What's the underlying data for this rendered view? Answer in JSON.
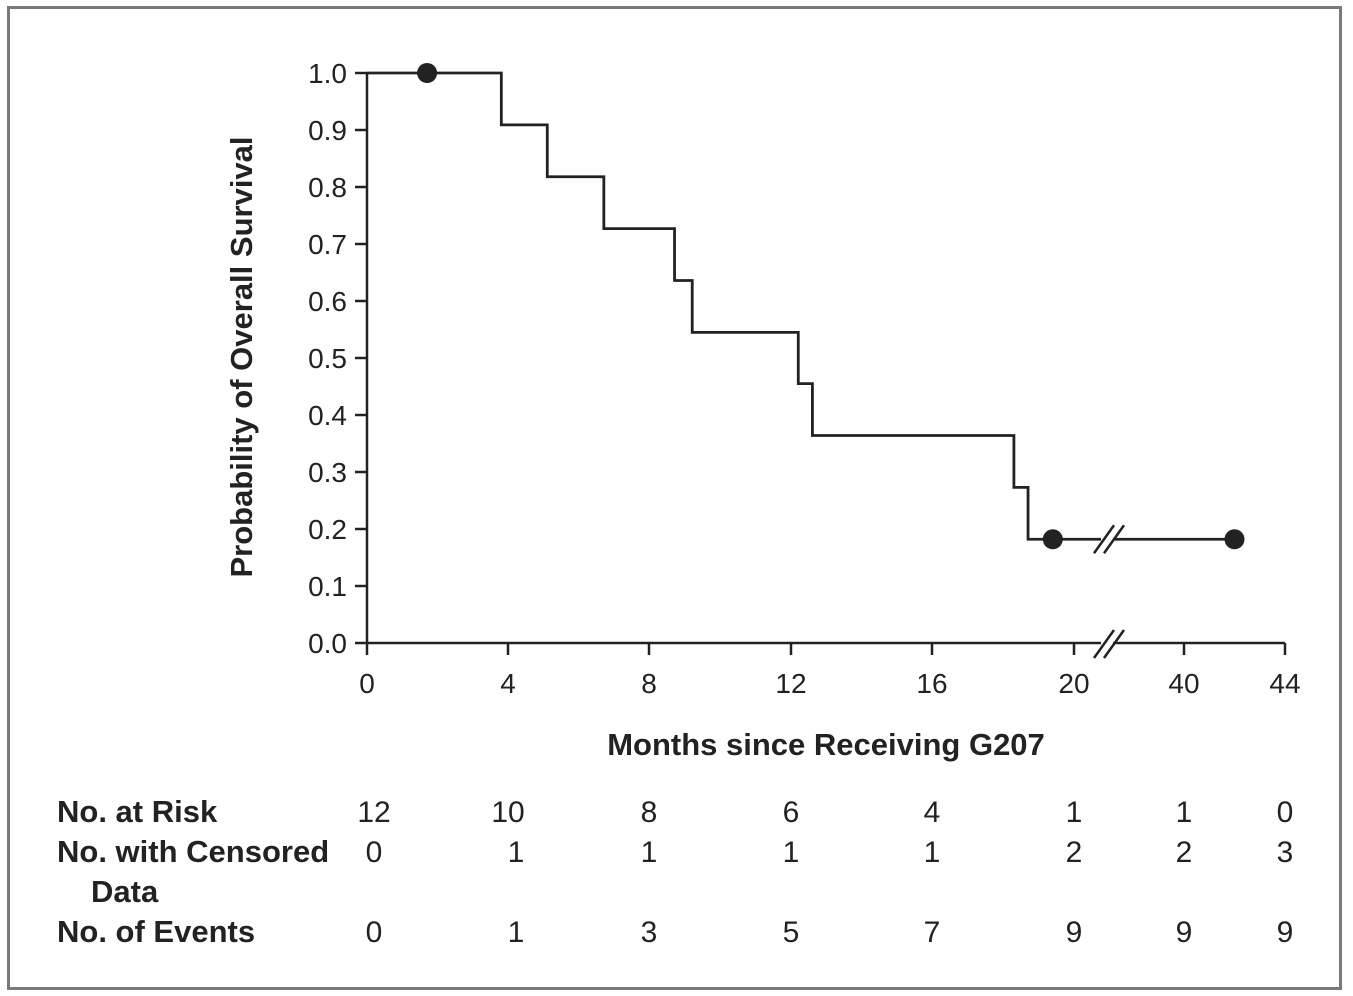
{
  "chart_data": {
    "type": "line",
    "subtype": "kaplan-meier step",
    "title": "",
    "xlabel": "Months since Receiving G207",
    "ylabel": "Probability of Overall Survival",
    "ylim": [
      0,
      1
    ],
    "x_axis_break": "between 20 and 40",
    "x_ticks": [
      "0",
      "4",
      "8",
      "12",
      "16",
      "20",
      "40",
      "44"
    ],
    "y_ticks": [
      "0.0",
      "0.1",
      "0.2",
      "0.3",
      "0.4",
      "0.5",
      "0.6",
      "0.7",
      "0.8",
      "0.9",
      "1.0"
    ],
    "series": [
      {
        "steps": [
          {
            "x": 0,
            "y": 1.0
          },
          {
            "x": 3.8,
            "y": 0.909
          },
          {
            "x": 5.1,
            "y": 0.818
          },
          {
            "x": 6.7,
            "y": 0.727
          },
          {
            "x": 8.7,
            "y": 0.636
          },
          {
            "x": 9.2,
            "y": 0.545
          },
          {
            "x": 12.2,
            "y": 0.455
          },
          {
            "x": 12.6,
            "y": 0.364
          },
          {
            "x": 18.3,
            "y": 0.273
          },
          {
            "x": 18.7,
            "y": 0.182
          }
        ],
        "end_x": 42.0,
        "censored": [
          {
            "x": 1.7,
            "y": 1.0
          },
          {
            "x": 19.4,
            "y": 0.182
          },
          {
            "x": 42.0,
            "y": 0.182
          }
        ]
      }
    ],
    "grid": false,
    "legend": "none",
    "line_color": "#222222"
  },
  "risk_table": {
    "columns": [
      "0",
      "4",
      "8",
      "12",
      "16",
      "20",
      "40",
      "44"
    ],
    "rows": [
      {
        "label": "No. at Risk",
        "values": [
          "12",
          "10",
          "8",
          "6",
          "4",
          "1",
          "1",
          "0"
        ]
      },
      {
        "label": "No. with Censored",
        "label_cont": "Data",
        "values": [
          "0",
          "1",
          "1",
          "1",
          "1",
          "2",
          "2",
          "3"
        ]
      },
      {
        "label": "No. of Events",
        "values": [
          "0",
          "1",
          "3",
          "5",
          "7",
          "9",
          "9",
          "9"
        ]
      }
    ]
  }
}
